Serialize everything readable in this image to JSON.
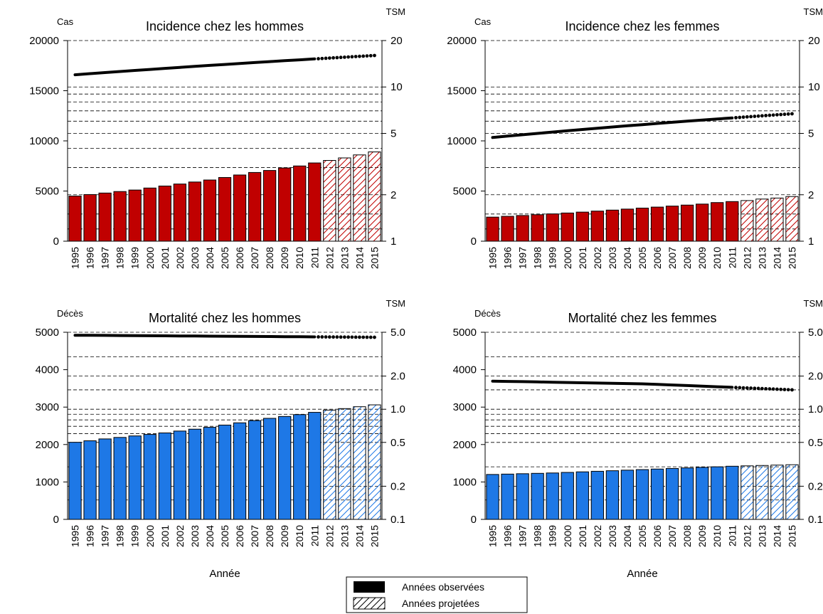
{
  "legend": {
    "observed_label": "Années observées",
    "projected_label": "Années projetées"
  },
  "chart_data": [
    {
      "type": "bar",
      "title": "Incidence chez les hommes",
      "ylabel": "Cas",
      "y2label": "TSM",
      "xlabel": "",
      "categories": [
        "1995",
        "1996",
        "1997",
        "1998",
        "1999",
        "2000",
        "2001",
        "2002",
        "2003",
        "2004",
        "2005",
        "2006",
        "2007",
        "2008",
        "2009",
        "2010",
        "2011",
        "2012",
        "2013",
        "2014",
        "2015"
      ],
      "ylim": [
        0,
        20000
      ],
      "yticks": [
        0,
        5000,
        10000,
        15000,
        20000
      ],
      "y2scale": "log",
      "y2lim": [
        1,
        20
      ],
      "y2ticks": [
        1,
        2,
        5,
        10,
        20
      ],
      "y2tick_labels": [
        "1",
        "2",
        "5",
        "10",
        "20"
      ],
      "grid": "dashed horizontal lines at log-scale TSM values",
      "bar_color": "#c00000",
      "observed_until": "2011",
      "series": [
        {
          "name": "Cas",
          "values": [
            4500,
            4650,
            4800,
            4950,
            5100,
            5300,
            5500,
            5700,
            5900,
            6100,
            6350,
            6600,
            6850,
            7050,
            7300,
            7500,
            7800,
            8050,
            8300,
            8600,
            8900
          ]
        },
        {
          "name": "TSM",
          "values": [
            12.0,
            12.2,
            12.4,
            12.6,
            12.8,
            13.0,
            13.2,
            13.4,
            13.6,
            13.8,
            14.0,
            14.2,
            14.4,
            14.6,
            14.8,
            15.0,
            15.2,
            15.4,
            15.6,
            15.8,
            16.0
          ]
        }
      ]
    },
    {
      "type": "bar",
      "title": "Incidence chez les femmes",
      "ylabel": "Cas",
      "y2label": "TSM",
      "xlabel": "",
      "categories": [
        "1995",
        "1996",
        "1997",
        "1998",
        "1999",
        "2000",
        "2001",
        "2002",
        "2003",
        "2004",
        "2005",
        "2006",
        "2007",
        "2008",
        "2009",
        "2010",
        "2011",
        "2012",
        "2013",
        "2014",
        "2015"
      ],
      "ylim": [
        0,
        20000
      ],
      "yticks": [
        0,
        5000,
        10000,
        15000,
        20000
      ],
      "y2scale": "log",
      "y2lim": [
        1,
        20
      ],
      "y2ticks": [
        1,
        2,
        5,
        10,
        20
      ],
      "y2tick_labels": [
        "1",
        "2",
        "5",
        "10",
        "20"
      ],
      "grid": "dashed horizontal lines at log-scale TSM values",
      "bar_color": "#c00000",
      "observed_until": "2011",
      "series": [
        {
          "name": "Cas",
          "values": [
            2400,
            2480,
            2560,
            2640,
            2720,
            2810,
            2900,
            3000,
            3100,
            3200,
            3300,
            3400,
            3500,
            3600,
            3700,
            3850,
            3950,
            4050,
            4200,
            4300,
            4450
          ]
        },
        {
          "name": "TSM",
          "values": [
            4.7,
            4.8,
            4.9,
            5.0,
            5.1,
            5.2,
            5.3,
            5.4,
            5.5,
            5.6,
            5.7,
            5.8,
            5.9,
            6.0,
            6.1,
            6.2,
            6.3,
            6.4,
            6.5,
            6.6,
            6.7
          ]
        }
      ]
    },
    {
      "type": "bar",
      "title": "Mortalité chez les hommes",
      "ylabel": "Décès",
      "y2label": "TSM",
      "xlabel": "Année",
      "categories": [
        "1995",
        "1996",
        "1997",
        "1998",
        "1999",
        "2000",
        "2001",
        "2002",
        "2003",
        "2004",
        "2005",
        "2006",
        "2007",
        "2008",
        "2009",
        "2010",
        "2011",
        "2012",
        "2013",
        "2014",
        "2015"
      ],
      "ylim": [
        0,
        5000
      ],
      "yticks": [
        0,
        1000,
        2000,
        3000,
        4000,
        5000
      ],
      "y2scale": "log",
      "y2lim": [
        0.1,
        5.0
      ],
      "y2ticks": [
        0.1,
        0.2,
        0.5,
        1.0,
        2.0,
        5.0
      ],
      "y2tick_labels": [
        "0.1",
        "0.2",
        "0.5",
        "1.0",
        "2.0",
        "5.0"
      ],
      "grid": "dashed horizontal lines at log-scale TSM values",
      "bar_color": "#1e78e6",
      "observed_until": "2011",
      "series": [
        {
          "name": "Décès",
          "values": [
            2060,
            2100,
            2150,
            2190,
            2230,
            2270,
            2310,
            2360,
            2410,
            2460,
            2520,
            2580,
            2640,
            2700,
            2750,
            2800,
            2860,
            2920,
            2960,
            3010,
            3060
          ]
        },
        {
          "name": "TSM",
          "values": [
            4.7,
            4.69,
            4.68,
            4.67,
            4.66,
            4.65,
            4.64,
            4.63,
            4.62,
            4.61,
            4.6,
            4.59,
            4.58,
            4.57,
            4.56,
            4.55,
            4.54,
            4.53,
            4.52,
            4.51,
            4.5
          ]
        }
      ]
    },
    {
      "type": "bar",
      "title": "Mortalité chez les femmes",
      "ylabel": "Décès",
      "y2label": "TSM",
      "xlabel": "Année",
      "categories": [
        "1995",
        "1996",
        "1997",
        "1998",
        "1999",
        "2000",
        "2001",
        "2002",
        "2003",
        "2004",
        "2005",
        "2006",
        "2007",
        "2008",
        "2009",
        "2010",
        "2011",
        "2012",
        "2013",
        "2014",
        "2015"
      ],
      "ylim": [
        0,
        5000
      ],
      "yticks": [
        0,
        1000,
        2000,
        3000,
        4000,
        5000
      ],
      "y2scale": "log",
      "y2lim": [
        0.1,
        5.0
      ],
      "y2ticks": [
        0.1,
        0.2,
        0.5,
        1.0,
        2.0,
        5.0
      ],
      "y2tick_labels": [
        "0.1",
        "0.2",
        "0.5",
        "1.0",
        "2.0",
        "5.0"
      ],
      "grid": "dashed horizontal lines at log-scale TSM values",
      "bar_color": "#1e78e6",
      "observed_until": "2011",
      "series": [
        {
          "name": "Décès",
          "values": [
            1200,
            1210,
            1220,
            1230,
            1240,
            1255,
            1270,
            1285,
            1300,
            1315,
            1330,
            1345,
            1360,
            1375,
            1390,
            1405,
            1420,
            1430,
            1440,
            1450,
            1460
          ]
        },
        {
          "name": "TSM",
          "values": [
            1.8,
            1.79,
            1.78,
            1.77,
            1.76,
            1.75,
            1.74,
            1.73,
            1.72,
            1.71,
            1.7,
            1.68,
            1.66,
            1.64,
            1.62,
            1.6,
            1.58,
            1.56,
            1.54,
            1.52,
            1.5
          ]
        }
      ]
    }
  ]
}
